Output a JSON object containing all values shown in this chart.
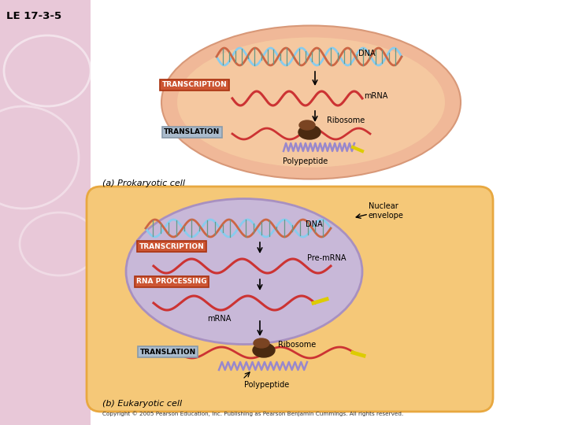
{
  "title": "LE 17-3-5",
  "bg_left_color": "#e8c8d8",
  "prokaryotic_label": "(a) Prokaryotic cell",
  "eukaryotic_label": "(b) Eukaryotic cell",
  "cell_fill": "#f5c878",
  "cell_border": "#e8a840",
  "cell_fill_pk": "#f5c8a0",
  "cell_border_pk": "#e8b090",
  "nucleus_fill": "#c8b8d8",
  "nucleus_border": "#a890c0",
  "transcription_fill": "#cc5533",
  "transcription_border": "#cc5533",
  "translation_fill_pk": "#aabbcc",
  "translation_border_pk": "#889aaa",
  "translation_fill_ek": "#aabbcc",
  "dna_top": "#88ccee",
  "dna_bot": "#cc6644",
  "mrna_color": "#cc3333",
  "rung_color": "#669988",
  "polypeptide_color": "#9988cc",
  "ribosome_dark": "#4a2a10",
  "ribosome_mid": "#7a4422",
  "yellow": "#ddcc00",
  "copyright": "Copyright © 2005 Pearson Education, Inc. Publishing as Pearson Benjamin Cummings. All rights reserved."
}
